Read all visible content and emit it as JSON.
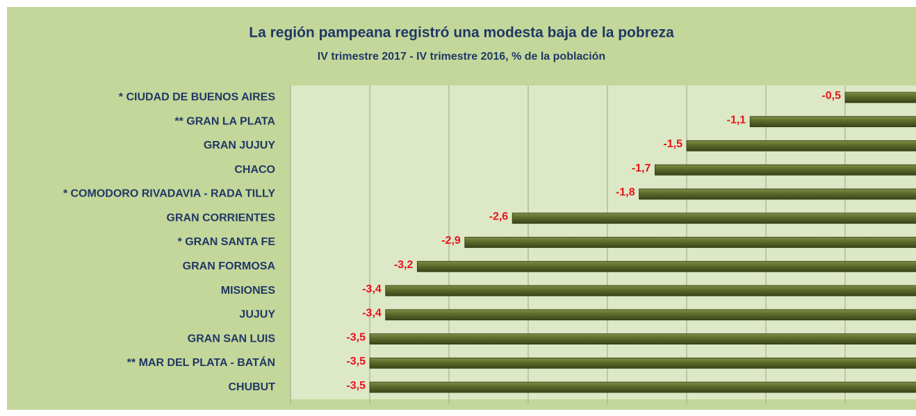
{
  "chart_data": {
    "type": "bar",
    "orientation": "horizontal",
    "title": "La región pampeana registró una modesta baja de la pobreza",
    "subtitle": "IV trimestre 2017 - IV trimestre 2016, % de la población",
    "categories": [
      "* CIUDAD DE BUENOS AIRES",
      "** GRAN LA PLATA",
      "GRAN JUJUY",
      "CHACO",
      "* COMODORO RIVADAVIA - RADA TILLY",
      "GRAN CORRIENTES",
      "* GRAN SANTA FE",
      "GRAN FORMOSA",
      "MISIONES",
      "JUJUY",
      "GRAN SAN LUIS",
      "** MAR DEL PLATA - BATÁN",
      "CHUBUT"
    ],
    "values": [
      -0.5,
      -1.1,
      -1.5,
      -1.7,
      -1.8,
      -2.6,
      -2.9,
      -3.2,
      -3.4,
      -3.4,
      -3.5,
      -3.5,
      -3.5
    ],
    "value_labels": [
      "-0,5",
      "-1,1",
      "-1,5",
      "-1,7",
      "-1,8",
      "-2,6",
      "-2,9",
      "-3,2",
      "-3,4",
      "-3,4",
      "-3,5",
      "-3,5",
      "-3,5"
    ],
    "color": "#5a6a2a",
    "xlim": [
      -4,
      0
    ],
    "xticks": [
      -4,
      -3.5,
      -3,
      -2.5,
      -2,
      -1.5,
      -1,
      -0.5,
      0
    ],
    "grid": true
  }
}
